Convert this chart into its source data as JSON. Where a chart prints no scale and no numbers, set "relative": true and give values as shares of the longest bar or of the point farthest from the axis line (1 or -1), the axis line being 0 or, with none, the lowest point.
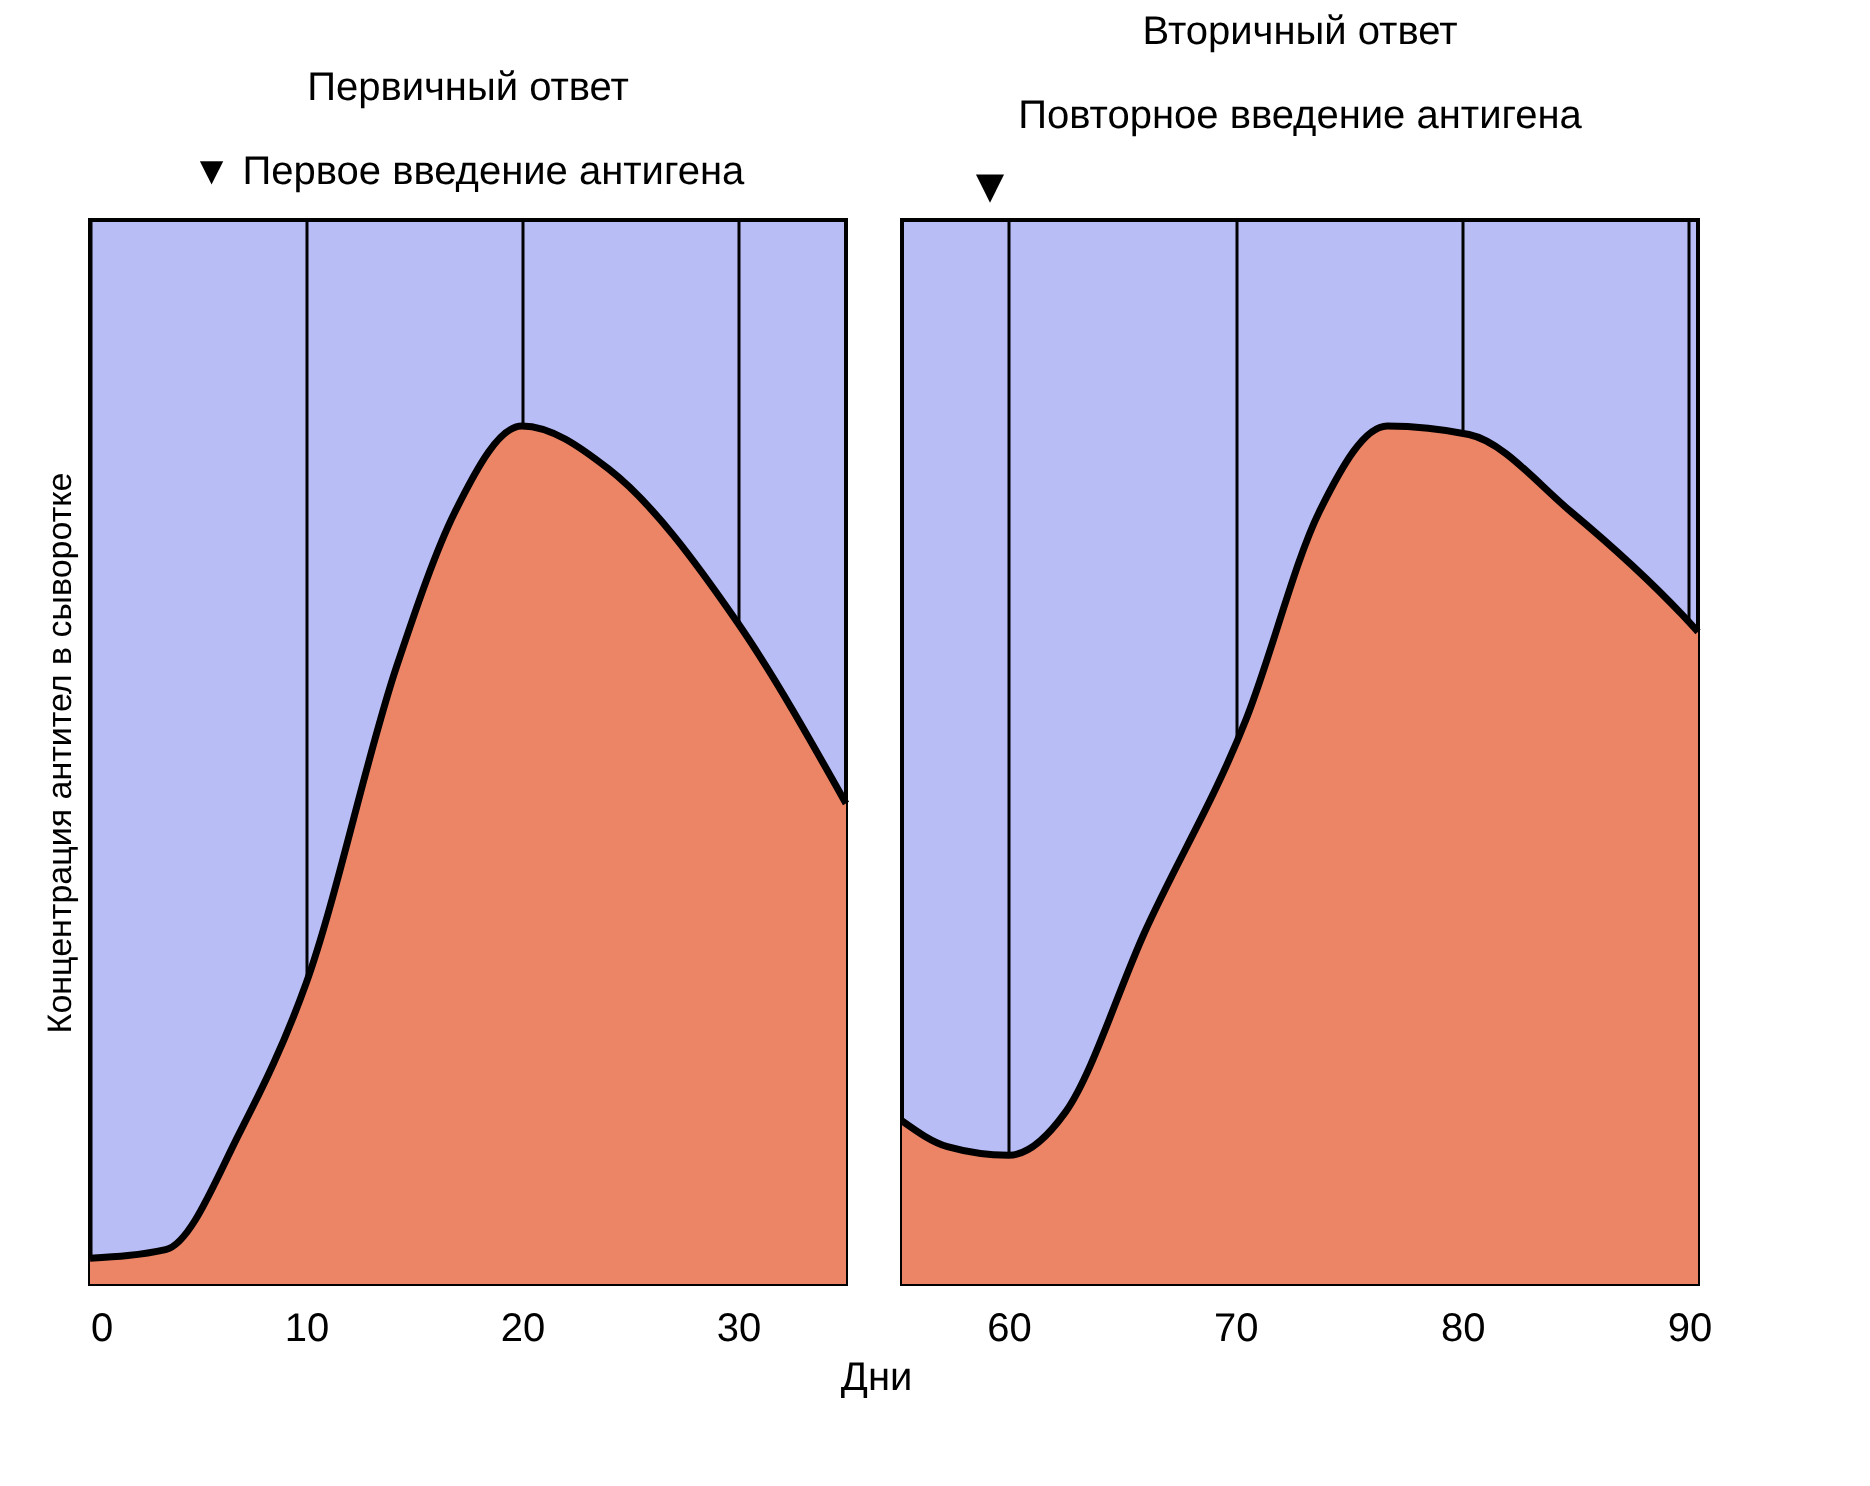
{
  "chart_data": [
    {
      "type": "area",
      "title": "Первичный ответ",
      "ylabel": "Концентрация антител в сыворотке",
      "xlabel": "Дни",
      "relative": true,
      "annotations": [
        "▼ Первое введение антигена"
      ],
      "xlim": [
        0,
        35
      ],
      "xticks": [
        0,
        10,
        20,
        30
      ],
      "grid": "x",
      "tick_labels": "x",
      "series": [
        {
          "color": "#ec8466",
          "x": [
            0,
            3.5,
            7,
            10,
            14.2,
            16.9,
            20,
            24,
            30,
            35
          ],
          "values": [
            0.03,
            0.04,
            0.18,
            0.35,
            0.72,
            0.9,
            1.0,
            0.95,
            0.77,
            0.56
          ]
        }
      ]
    },
    {
      "type": "area",
      "title": "Вторичный ответ",
      "relative": true,
      "annotations": [
        "Повторное введение антигена",
        "▼"
      ],
      "xlim": [
        55.3,
        90.4
      ],
      "xticks": [
        60,
        70,
        80,
        90
      ],
      "grid": "x",
      "tick_labels": "x",
      "series": [
        {
          "color": "#ec8466",
          "x": [
            55.3,
            57.3,
            60,
            62.5,
            66,
            70.5,
            73.7,
            76.7,
            80.3,
            84.8,
            89.7,
            90.4
          ],
          "values": [
            0.19,
            0.16,
            0.15,
            0.2,
            0.41,
            0.66,
            0.9,
            1.0,
            0.99,
            0.9,
            0.78,
            0.76
          ]
        }
      ]
    }
  ]
}
